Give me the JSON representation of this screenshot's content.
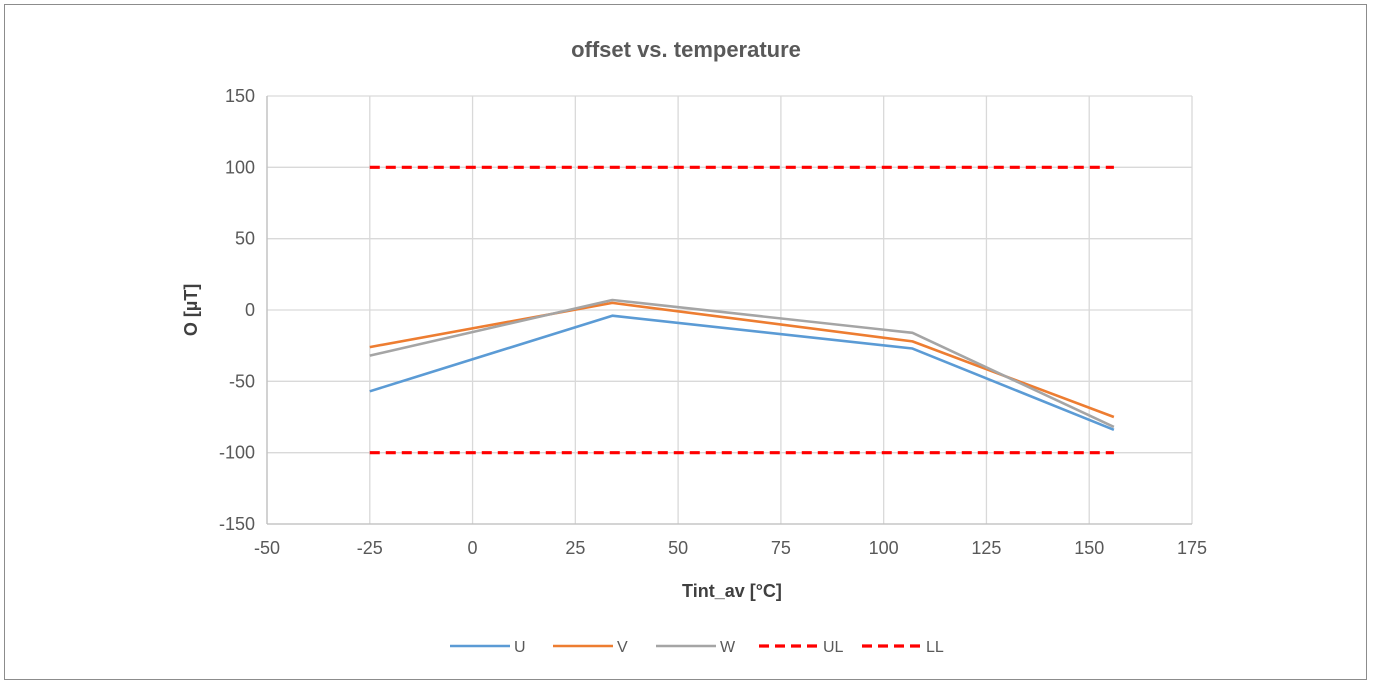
{
  "chart_data": {
    "type": "line",
    "title": "offset vs. temperature",
    "xlabel": "Tint_av [°C]",
    "ylabel": "O [µT]",
    "xlim": [
      -50,
      175
    ],
    "ylim": [
      -150,
      150
    ],
    "x_ticks": [
      -50,
      -25,
      0,
      25,
      50,
      75,
      100,
      125,
      150,
      175
    ],
    "y_ticks": [
      150,
      100,
      50,
      0,
      -50,
      -100,
      -150
    ],
    "grid": true,
    "legend_position": "bottom",
    "series": [
      {
        "name": "U",
        "color": "#5b9bd5",
        "dash": "solid",
        "x": [
          -25,
          34,
          107,
          156
        ],
        "y": [
          -57,
          -4,
          -27,
          -84
        ]
      },
      {
        "name": "V",
        "color": "#ed7d31",
        "dash": "solid",
        "x": [
          -25,
          34,
          107,
          156
        ],
        "y": [
          -26,
          5,
          -22,
          -75
        ]
      },
      {
        "name": "W",
        "color": "#a5a5a5",
        "dash": "solid",
        "x": [
          -25,
          34,
          107,
          156
        ],
        "y": [
          -32,
          7,
          -16,
          -82
        ]
      },
      {
        "name": "UL",
        "color": "#ff0000",
        "dash": "dashed",
        "x": [
          -25,
          156
        ],
        "y": [
          100,
          100
        ]
      },
      {
        "name": "LL",
        "color": "#ff0000",
        "dash": "dashed",
        "x": [
          -25,
          156
        ],
        "y": [
          -100,
          -100
        ]
      }
    ]
  }
}
